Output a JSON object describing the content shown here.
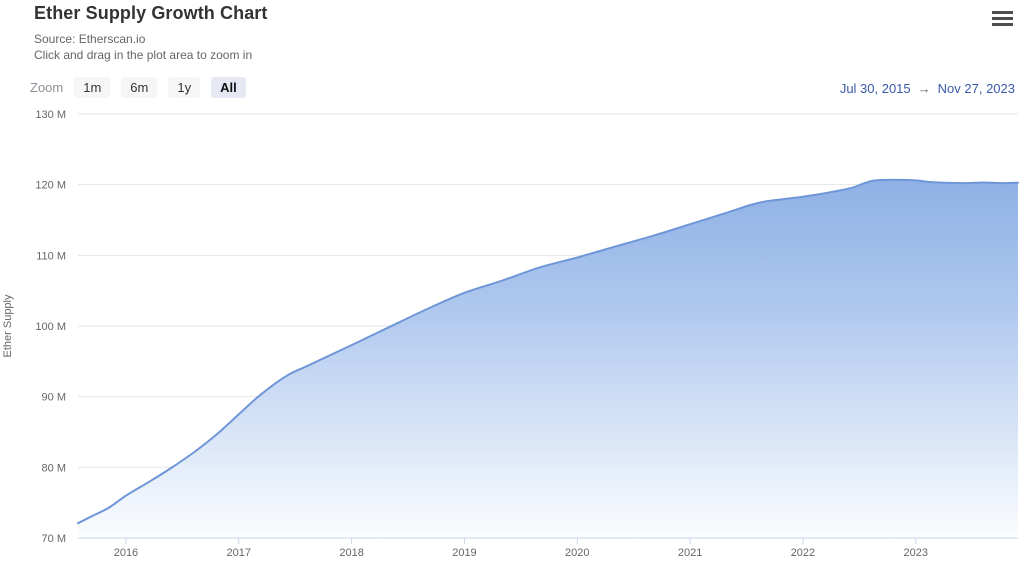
{
  "header": {
    "title": "Ether Supply Growth Chart",
    "subtitle_source": "Source: Etherscan.io",
    "subtitle_hint": "Click and drag in the plot area to zoom in"
  },
  "toolbar": {
    "zoom_label": "Zoom",
    "buttons": [
      {
        "label": "1m",
        "active": false
      },
      {
        "label": "6m",
        "active": false
      },
      {
        "label": "1y",
        "active": false
      },
      {
        "label": "All",
        "active": true
      }
    ],
    "range": {
      "from": "Jul 30, 2015",
      "arrow": "→",
      "to": "Nov 27, 2023"
    }
  },
  "chart_data": {
    "type": "area",
    "title": "Ether Supply Growth Chart",
    "xlabel": "",
    "ylabel": "Ether Supply",
    "legend": "off",
    "grid": "horizontal",
    "x_range": [
      2015.575,
      2023.906
    ],
    "ylim": [
      70,
      130
    ],
    "y_ticks": [
      {
        "v": 70,
        "label": "70 M"
      },
      {
        "v": 80,
        "label": "80 M"
      },
      {
        "v": 90,
        "label": "90 M"
      },
      {
        "v": 100,
        "label": "100 M"
      },
      {
        "v": 110,
        "label": "110 M"
      },
      {
        "v": 120,
        "label": "120 M"
      },
      {
        "v": 130,
        "label": "130 M"
      }
    ],
    "x_ticks": [
      {
        "v": 2016,
        "label": "2016"
      },
      {
        "v": 2017,
        "label": "2017"
      },
      {
        "v": 2018,
        "label": "2018"
      },
      {
        "v": 2019,
        "label": "2019"
      },
      {
        "v": 2020,
        "label": "2020"
      },
      {
        "v": 2021,
        "label": "2021"
      },
      {
        "v": 2022,
        "label": "2022"
      },
      {
        "v": 2023,
        "label": "2023"
      }
    ],
    "series_name": "Ether Supply (millions)",
    "points": [
      [
        2015.575,
        72.1
      ],
      [
        2015.7,
        73.1
      ],
      [
        2015.85,
        74.3
      ],
      [
        2016.0,
        76.0
      ],
      [
        2016.2,
        77.9
      ],
      [
        2016.4,
        79.9
      ],
      [
        2016.6,
        82.1
      ],
      [
        2016.8,
        84.6
      ],
      [
        2017.0,
        87.5
      ],
      [
        2017.15,
        89.7
      ],
      [
        2017.3,
        91.6
      ],
      [
        2017.45,
        93.2
      ],
      [
        2017.6,
        94.3
      ],
      [
        2017.8,
        95.8
      ],
      [
        2018.0,
        97.3
      ],
      [
        2018.17,
        98.6
      ],
      [
        2018.34,
        99.9
      ],
      [
        2018.67,
        102.4
      ],
      [
        2019.0,
        104.7
      ],
      [
        2019.33,
        106.4
      ],
      [
        2019.67,
        108.3
      ],
      [
        2020.0,
        109.7
      ],
      [
        2020.35,
        111.3
      ],
      [
        2020.7,
        112.9
      ],
      [
        2021.0,
        114.4
      ],
      [
        2021.3,
        115.9
      ],
      [
        2021.55,
        117.2
      ],
      [
        2021.7,
        117.7
      ],
      [
        2022.0,
        118.3
      ],
      [
        2022.2,
        118.8
      ],
      [
        2022.42,
        119.5
      ],
      [
        2022.55,
        120.25
      ],
      [
        2022.65,
        120.63
      ],
      [
        2022.85,
        120.68
      ],
      [
        2023.0,
        120.6
      ],
      [
        2023.12,
        120.38
      ],
      [
        2023.25,
        120.28
      ],
      [
        2023.45,
        120.22
      ],
      [
        2023.6,
        120.3
      ],
      [
        2023.75,
        120.22
      ],
      [
        2023.906,
        120.28
      ]
    ],
    "colors": {
      "line": "#6f96d8",
      "grid": "#e6e6e6",
      "axis_line": "#ccd6eb",
      "tick_label": "#666666",
      "fill_stops": [
        {
          "offset": "0%",
          "color": "#7ea5e0"
        },
        {
          "offset": "45%",
          "color": "#aec7ee"
        },
        {
          "offset": "100%",
          "color": "#fbfdfe"
        }
      ]
    }
  }
}
